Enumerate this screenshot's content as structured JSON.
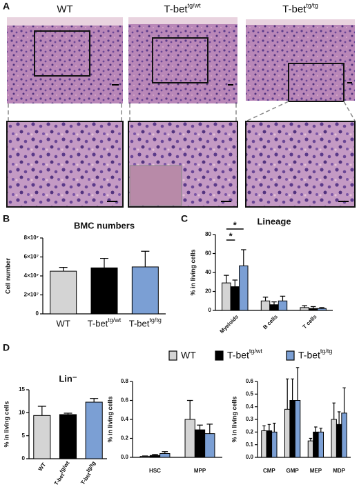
{
  "panel_labels": [
    "A",
    "B",
    "C",
    "D"
  ],
  "panel_a": {
    "headers": [
      {
        "name": "WT"
      },
      {
        "name": "T-bet",
        "sup": "tg/wt"
      },
      {
        "name": "T-bet",
        "sup": "tg/tg"
      }
    ]
  },
  "legend": [
    {
      "name": "WT"
    },
    {
      "name": "T-bet",
      "sup": "tg/wt"
    },
    {
      "name": "T-bet",
      "sup": "tg/tg"
    }
  ],
  "chart_data": [
    {
      "type": "bar",
      "title": "BMC numbers",
      "y_label": "Cell number",
      "categories": [
        "WT",
        "T-bet",
        "T-bet"
      ],
      "category_superscripts": [
        null,
        "tg/wt",
        "tg/tg"
      ],
      "values": [
        45000000,
        48500000,
        49500000
      ],
      "errors": [
        4000000,
        10000000,
        16500000
      ],
      "colors": [
        "#d4d4d4",
        "#000000",
        "#7b9fd4"
      ],
      "ylim": [
        0,
        80000000
      ],
      "yticks": [
        0,
        {
          "value": 20000000,
          "label": "2×10⁷"
        },
        {
          "value": 40000000,
          "label": "4×10⁷"
        },
        {
          "value": 60000000,
          "label": "6×10⁷"
        },
        {
          "value": 80000000,
          "label": "8×10⁷"
        }
      ]
    },
    {
      "type": "bar",
      "title": "Lineage",
      "y_label": "% in living cells",
      "categories": [
        "Myeloids",
        "B cells",
        "T cells"
      ],
      "series": [
        {
          "color": "#d4d4d4",
          "values": [
            29,
            10,
            3
          ],
          "errors": [
            8,
            4,
            2
          ]
        },
        {
          "color": "#000000",
          "values": [
            25,
            6,
            2
          ],
          "errors": [
            7,
            3,
            2
          ]
        },
        {
          "color": "#7b9fd4",
          "values": [
            47,
            10,
            2
          ],
          "errors": [
            17,
            5,
            1
          ]
        }
      ],
      "annotations": [
        "*",
        "*"
      ],
      "ylim": [
        0,
        80
      ],
      "yticks": [
        0,
        20,
        40,
        60,
        80
      ]
    },
    {
      "type": "bar",
      "title": "Lin⁻",
      "y_label": "% in living cells",
      "categories": [
        "WT",
        "T-bet",
        "T-bet"
      ],
      "category_superscripts": [
        null,
        "tg/wt",
        "tg/tg"
      ],
      "values": [
        9.4,
        9.6,
        12.3
      ],
      "errors": [
        2,
        0.3,
        0.8
      ],
      "colors": [
        "#d4d4d4",
        "#000000",
        "#7b9fd4"
      ],
      "ylim": [
        0,
        15
      ],
      "yticks": [
        0,
        5,
        10,
        15
      ]
    },
    {
      "type": "bar",
      "y_label": "% in living cells",
      "categories": [
        "HSC",
        "MPP"
      ],
      "series": [
        {
          "color": "#d4d4d4",
          "values": [
            0.01,
            0.4
          ],
          "errors": [
            0.005,
            0.2
          ]
        },
        {
          "color": "#000000",
          "values": [
            0.02,
            0.29
          ],
          "errors": [
            0.01,
            0.05
          ]
        },
        {
          "color": "#7b9fd4",
          "values": [
            0.04,
            0.25
          ],
          "errors": [
            0.02,
            0.1
          ]
        }
      ],
      "ylim": [
        0,
        0.8
      ],
      "yticks": [
        {
          "value": 0,
          "label": "0.0"
        },
        0.2,
        0.4,
        0.6,
        0.8
      ]
    },
    {
      "type": "bar",
      "y_label": "% in living cells",
      "categories": [
        "CMP",
        "GMP",
        "MEP",
        "MDP"
      ],
      "series": [
        {
          "color": "#d4d4d4",
          "values": [
            0.21,
            0.38,
            0.13,
            0.3
          ],
          "errors": [
            0.04,
            0.24,
            0.02,
            0.13
          ]
        },
        {
          "color": "#000000",
          "values": [
            0.21,
            0.45,
            0.2,
            0.26
          ],
          "errors": [
            0.05,
            0.17,
            0.04,
            0.1
          ]
        },
        {
          "color": "#7b9fd4",
          "values": [
            0.2,
            0.45,
            0.2,
            0.35
          ],
          "errors": [
            0.07,
            0.26,
            0.03,
            0.2
          ]
        }
      ],
      "ylim": [
        0,
        0.6
      ],
      "yticks": [
        {
          "value": 0,
          "label": "0.0"
        },
        0.1,
        0.2,
        0.3,
        0.4,
        0.5,
        0.6
      ]
    }
  ]
}
